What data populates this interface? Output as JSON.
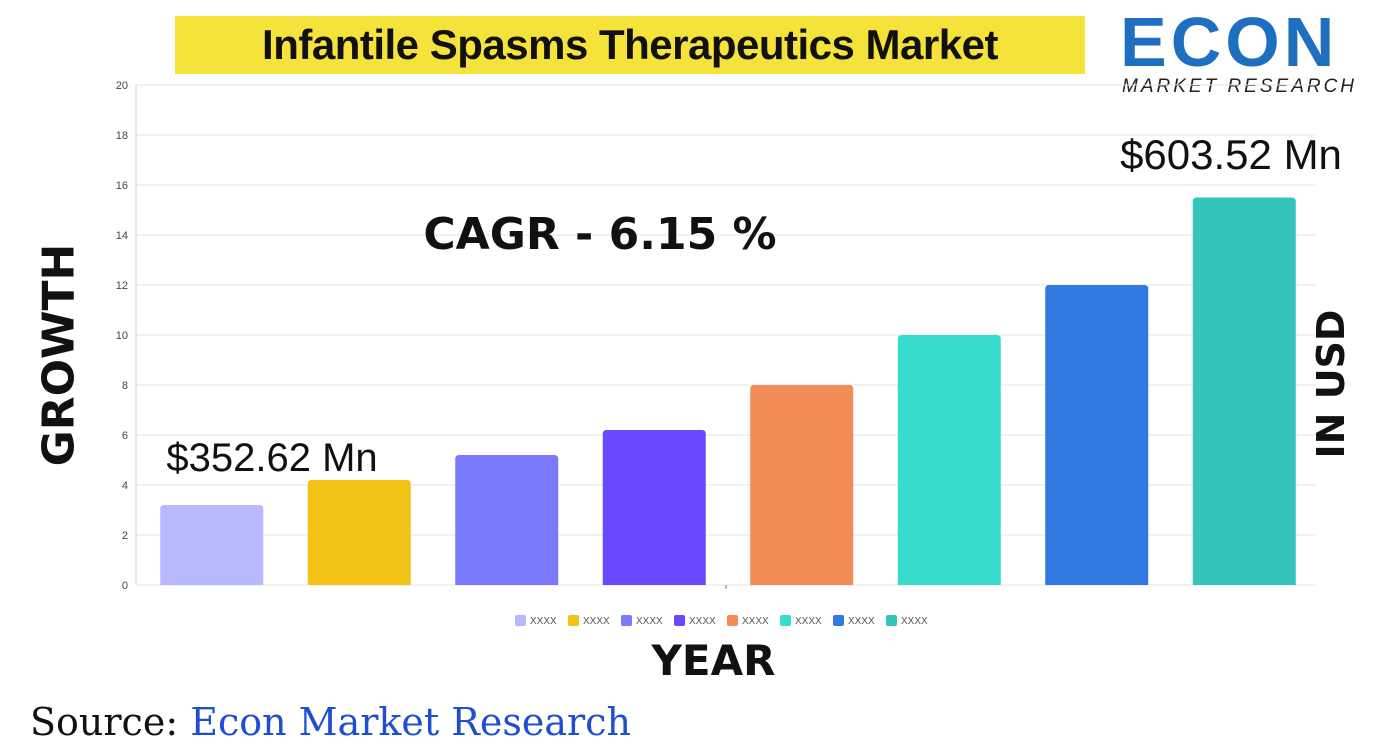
{
  "title": "Infantile Spasms Therapeutics Market",
  "logo": {
    "main": "ECON",
    "sub": "MARKET RESEARCH"
  },
  "axis_labels": {
    "y": "GROWTH",
    "right": "IN USD",
    "x": "YEAR"
  },
  "source": {
    "label": "Source:",
    "value": "Econ Market Research"
  },
  "colors": {
    "title_highlight": "#f5e23a",
    "logo_blue": "#1f6fc1",
    "source_blue": "#1f4fd1"
  },
  "chart_data": {
    "type": "bar",
    "categories": [
      "",
      "",
      "",
      "",
      "",
      "",
      "",
      ""
    ],
    "values": [
      3.2,
      4.2,
      5.2,
      6.2,
      8,
      10,
      12,
      15.5
    ],
    "colors": [
      "#b8b8fd",
      "#f2c314",
      "#7a7afe",
      "#6a48fd",
      "#f28b56",
      "#38dccc",
      "#3178e2",
      "#35c4bc"
    ],
    "legend": [
      "XXXX",
      "XXXX",
      "XXXX",
      "XXXX",
      "XXXX",
      "XXXX",
      "XXXX",
      "XXXX"
    ],
    "legend_position": "bottom",
    "ylim": [
      0,
      20
    ],
    "yticks": [
      0,
      2,
      4,
      6,
      8,
      10,
      12,
      14,
      16,
      18,
      20
    ],
    "grid": true,
    "annotations": {
      "start_value": "$352.62 Mn",
      "end_value": "$603.52 Mn",
      "cagr": "CAGR  - 6.15 %"
    }
  }
}
